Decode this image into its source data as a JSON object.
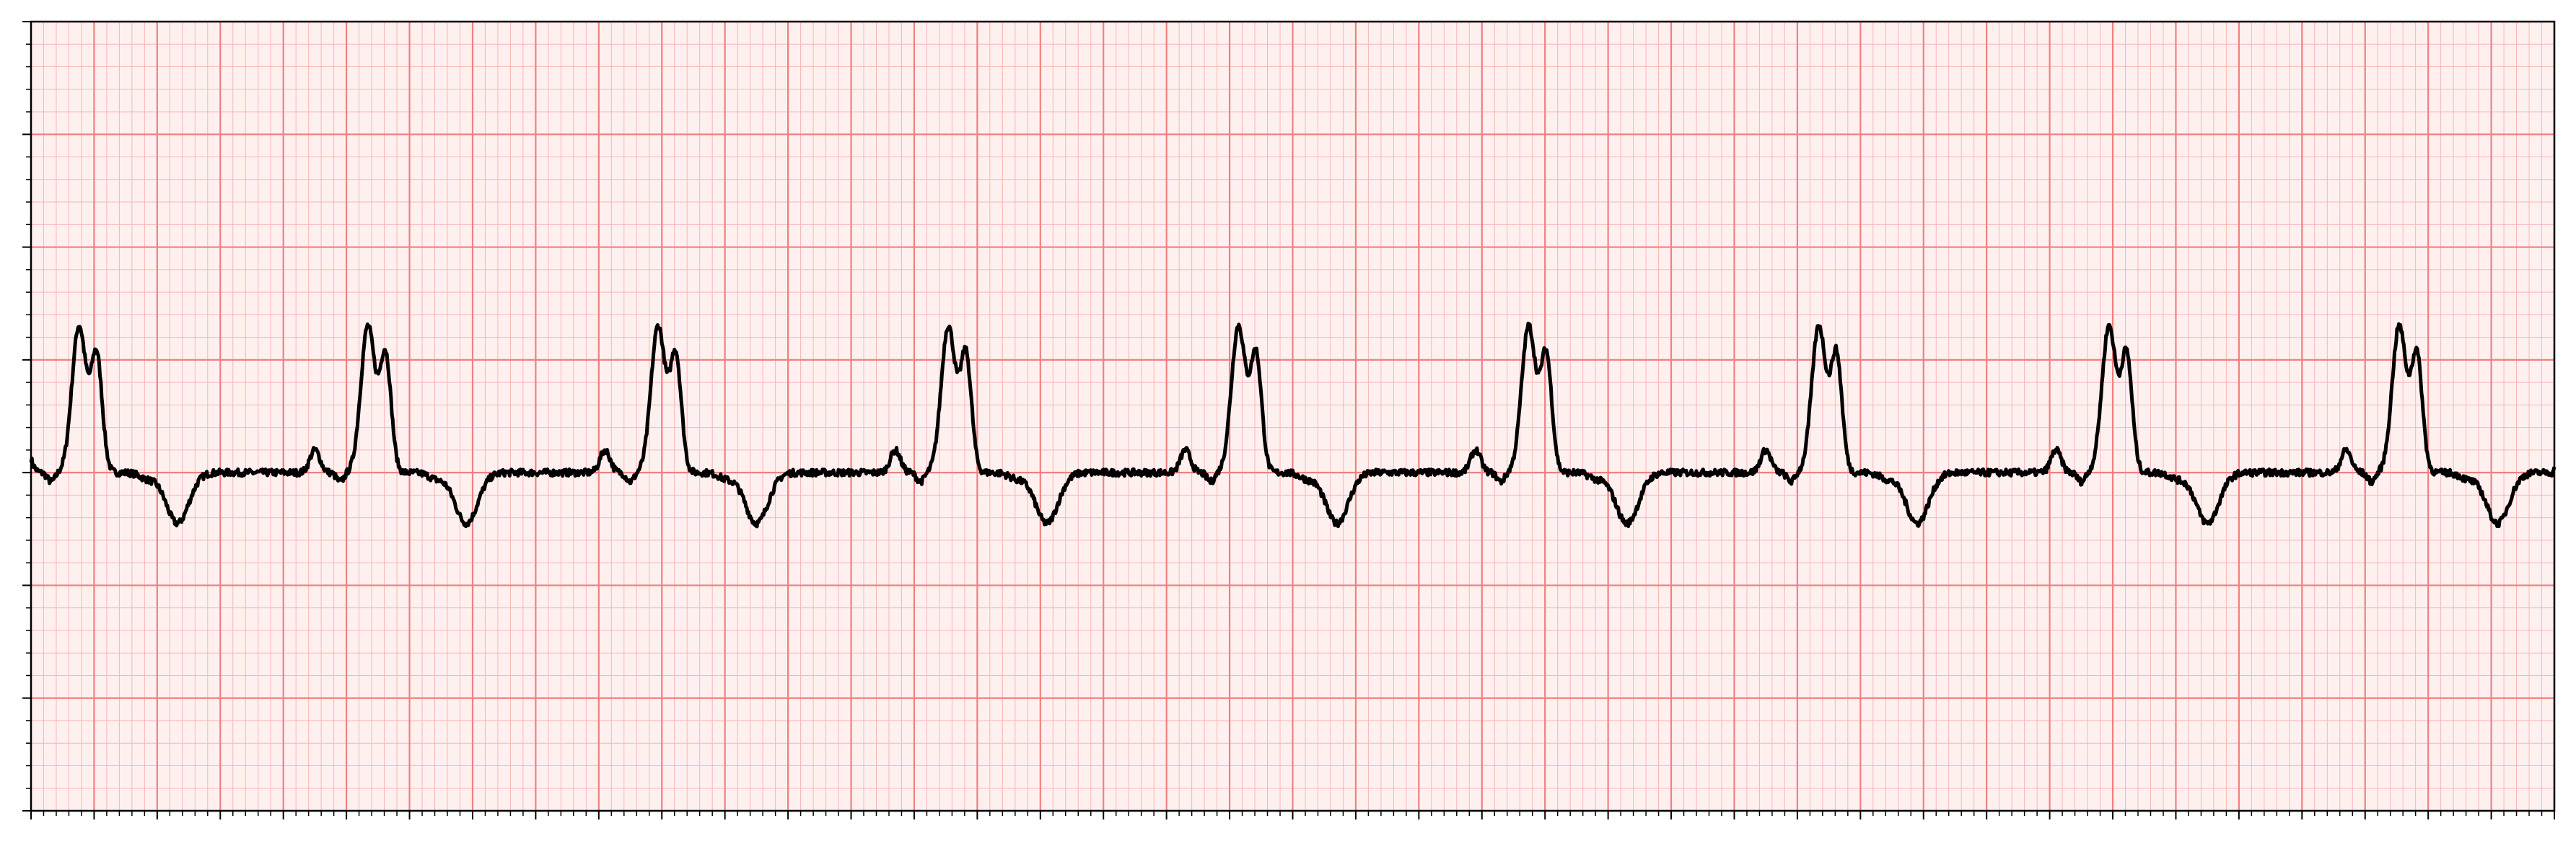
{
  "chart_data": {
    "type": "line",
    "title": "",
    "xlabel": "",
    "ylabel": "",
    "xlim": [
      0,
      10
    ],
    "ylim": [
      -3,
      4
    ],
    "grid": {
      "major": true,
      "minor": true,
      "major_x_step": 0.25,
      "minor_x_step": 0.05,
      "major_y_step": 1.0,
      "minor_y_step": 0.2
    },
    "tick_labels_visible": false,
    "background_color": "#fff0f0",
    "major_grid_color": "#f08080",
    "minor_grid_color": "#f8b4b4",
    "trace_color": "#000000",
    "series": [
      {
        "beat_times_s": [
          0.26,
          1.405,
          2.555,
          3.705,
          4.855,
          6.005,
          7.155,
          8.305,
          9.455
        ],
        "baseline_mV": 0.0,
        "r_peak_mV": 1.75,
        "shoulder_mV": 1.3,
        "p_wave_mV": 0.2,
        "t_wave_mV": -0.45,
        "trace_end_value_mV": 0.05
      }
    ]
  }
}
